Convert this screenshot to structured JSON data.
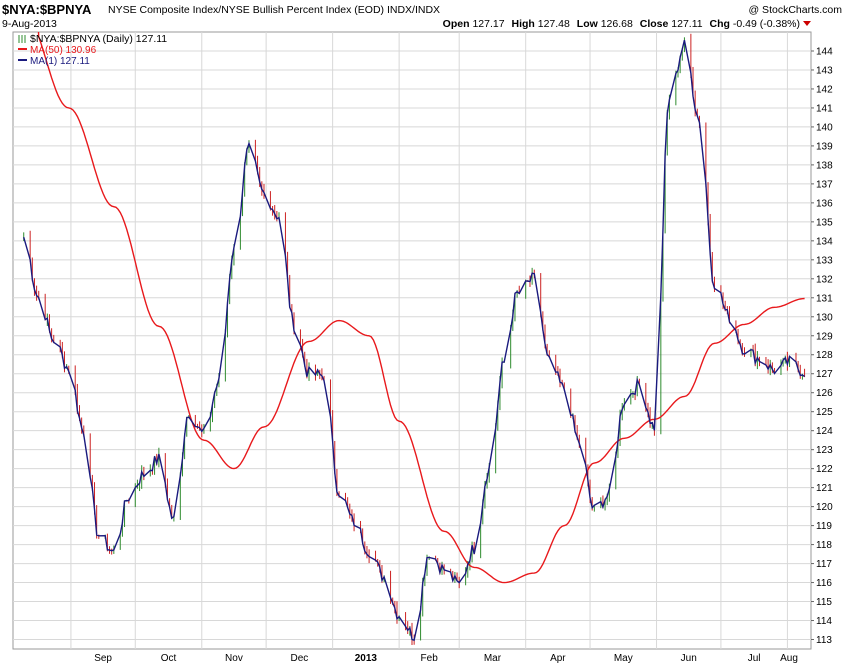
{
  "header": {
    "symbol": "$NYA:$BPNYA",
    "description": "NYSE Composite Index/NYSE Bullish Percent Index (EOD) INDX/INDX",
    "date": "9-Aug-2013",
    "watermark": "@ StockCharts.com",
    "open_label": "Open",
    "open_value": "127.17",
    "high_label": "High",
    "high_value": "127.48",
    "low_label": "Low",
    "low_value": "126.68",
    "close_label": "Close",
    "close_value": "127.11",
    "chg_label": "Chg",
    "chg_value": "-0.49 (-0.38%)"
  },
  "legend": [
    {
      "text": "$NYA:$BPNYA (Daily) 127.11",
      "color": "#000000"
    },
    {
      "text": "MA(50) 130.96",
      "color": "#e8191c"
    },
    {
      "text": "MA(1) 127.11",
      "color": "#1a1a7e"
    }
  ],
  "chart_data": {
    "type": "line",
    "x_tick_labels": [
      "Sep",
      "Oct",
      "Nov",
      "Dec",
      "2013",
      "Feb",
      "Mar",
      "Apr",
      "May",
      "Jun",
      "Jul",
      "Aug"
    ],
    "y_tick_labels": [
      113,
      114,
      115,
      116,
      117,
      118,
      119,
      120,
      121,
      122,
      123,
      124,
      125,
      126,
      127,
      128,
      129,
      130,
      131,
      132,
      133,
      134,
      135,
      136,
      137,
      138,
      139,
      140,
      141,
      142,
      143,
      144
    ],
    "ylim": [
      112.5,
      145
    ],
    "grid": true,
    "y_axis_side": "right",
    "legend_position": "top-left",
    "colors": {
      "price": "#1a1a7e",
      "ma50": "#e8191c",
      "up_tick": "#2e8b2e",
      "down_tick": "#cc2222"
    },
    "series": [
      {
        "name": "MA(1) 127.11",
        "dates": [
          "2012-08-10",
          "2012-08-17",
          "2012-08-24",
          "2012-08-31",
          "2012-09-07",
          "2012-09-14",
          "2012-09-21",
          "2012-09-28",
          "2012-10-05",
          "2012-10-12",
          "2012-10-19",
          "2012-10-26",
          "2012-11-02",
          "2012-11-09",
          "2012-11-16",
          "2012-11-23",
          "2012-11-30",
          "2012-12-07",
          "2012-12-14",
          "2012-12-21",
          "2012-12-28",
          "2013-01-04",
          "2013-01-11",
          "2013-01-18",
          "2013-01-25",
          "2013-02-01",
          "2013-02-08",
          "2013-02-15",
          "2013-02-22",
          "2013-03-01",
          "2013-03-08",
          "2013-03-15",
          "2013-03-22",
          "2013-03-28",
          "2013-04-05",
          "2013-04-12",
          "2013-04-19",
          "2013-04-26",
          "2013-05-03",
          "2013-05-10",
          "2013-05-17",
          "2013-05-24",
          "2013-05-31",
          "2013-06-07",
          "2013-06-14",
          "2013-06-21",
          "2013-06-28",
          "2013-07-05",
          "2013-07-12",
          "2013-07-19",
          "2013-07-26",
          "2013-08-02",
          "2013-08-09"
        ],
        "values": [
          134.2,
          131.0,
          128.8,
          127.3,
          124.0,
          118.5,
          117.6,
          120.5,
          121.7,
          122.5,
          119.3,
          125.0,
          123.8,
          126.5,
          133.5,
          138.8,
          136.5,
          135.3,
          129.6,
          127.0,
          126.9,
          120.8,
          119.2,
          117.7,
          116.3,
          114.3,
          113.2,
          117.6,
          116.7,
          115.9,
          117.8,
          122.0,
          127.6,
          131.2,
          132.0,
          127.6,
          126.2,
          123.4,
          119.8,
          120.6,
          125.6,
          126.4,
          124.2,
          141.5,
          144.3,
          140.4,
          131.8,
          130.0,
          128.3,
          127.8,
          127.2,
          127.6,
          127.11
        ]
      },
      {
        "name": "MA(50) 130.96",
        "dates": [
          "2012-08-10",
          "2012-08-31",
          "2012-09-21",
          "2012-10-12",
          "2012-11-02",
          "2012-11-16",
          "2012-11-30",
          "2012-12-21",
          "2013-01-04",
          "2013-01-18",
          "2013-02-01",
          "2013-02-22",
          "2013-03-08",
          "2013-03-22",
          "2013-04-05",
          "2013-04-19",
          "2013-05-03",
          "2013-05-17",
          "2013-05-31",
          "2013-06-14",
          "2013-06-28",
          "2013-07-12",
          "2013-07-26",
          "2013-08-09"
        ],
        "values": [
          146.0,
          141.0,
          135.8,
          129.5,
          123.5,
          122.0,
          124.2,
          128.7,
          129.8,
          129.0,
          124.5,
          118.7,
          116.8,
          116.0,
          116.5,
          119.0,
          122.3,
          123.6,
          124.6,
          125.8,
          128.6,
          129.6,
          130.5,
          130.96
        ]
      }
    ]
  }
}
